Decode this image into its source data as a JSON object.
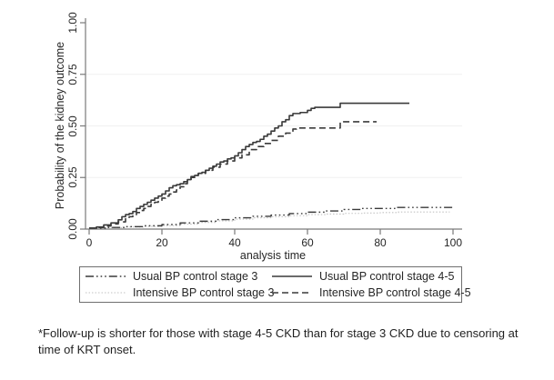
{
  "colors": {
    "background": "#ffffff",
    "axis": "#7a7a7a",
    "gridline": "#f0f0f0",
    "curve_dark": "#3a3a3a",
    "curve_faint": "#c2c2c2",
    "text": "#262626",
    "legend_border": "#6f6f6f"
  },
  "footnote": "*Follow-up is shorter for those with stage 4-5 CKD than for stage 3 CKD due to censoring at time of KRT onset.",
  "chart_data": {
    "type": "line",
    "subtype": "kaplan-meier-step",
    "title": "",
    "xlabel": "analysis time",
    "ylabel": "Probability of the kidney outcome",
    "xlim": [
      0,
      100
    ],
    "ylim": [
      0,
      1
    ],
    "xticks": [
      0,
      20,
      40,
      60,
      80,
      100
    ],
    "yticks": [
      0,
      0.25,
      0.5,
      0.75,
      1.0
    ],
    "xtick_labels": [
      "0",
      "20",
      "40",
      "60",
      "80",
      "100"
    ],
    "ytick_labels": [
      "0.00",
      "0.25",
      "0.50",
      "0.75",
      "1.00"
    ],
    "grid_y": [
      0.25,
      0.5,
      0.75
    ],
    "grid": "horizontal-only",
    "legend_position": "bottom",
    "series": [
      {
        "name": "Usual BP control stage 3",
        "style": "dash_dot",
        "color": "#3a3a3a",
        "x": [
          0,
          5,
          10,
          15,
          20,
          25,
          30,
          35,
          40,
          45,
          50,
          55,
          60,
          65,
          70,
          75,
          80,
          84,
          100
        ],
        "y": [
          0.005,
          0.008,
          0.012,
          0.016,
          0.022,
          0.03,
          0.038,
          0.046,
          0.055,
          0.062,
          0.068,
          0.075,
          0.082,
          0.088,
          0.095,
          0.1,
          0.1,
          0.105,
          0.105
        ]
      },
      {
        "name": "Intensive BP control stage 3",
        "style": "dotted_faint",
        "color": "#c2c2c2",
        "x": [
          0,
          5,
          10,
          15,
          20,
          25,
          30,
          35,
          40,
          45,
          50,
          55,
          60,
          65,
          70,
          75,
          80,
          85,
          99
        ],
        "y": [
          0.005,
          0.007,
          0.01,
          0.013,
          0.017,
          0.024,
          0.032,
          0.04,
          0.048,
          0.055,
          0.06,
          0.065,
          0.07,
          0.073,
          0.076,
          0.078,
          0.08,
          0.083,
          0.085
        ]
      },
      {
        "name": "Usual BP control stage 4-5",
        "style": "solid",
        "color": "#3a3a3a",
        "x": [
          0,
          2,
          4,
          6,
          8,
          9,
          10,
          11,
          12,
          13,
          14,
          15,
          16,
          17,
          18,
          19,
          20,
          21,
          22,
          23,
          24,
          25,
          26,
          27,
          28,
          29,
          30,
          31,
          32,
          33,
          34,
          35,
          36,
          37,
          38,
          39,
          40,
          41,
          42,
          43,
          44,
          45,
          46,
          47,
          48,
          49,
          50,
          51,
          52,
          53,
          54,
          55,
          56,
          58,
          60,
          61,
          62,
          68,
          69,
          88
        ],
        "y": [
          0.005,
          0.01,
          0.02,
          0.03,
          0.045,
          0.06,
          0.07,
          0.075,
          0.085,
          0.1,
          0.11,
          0.12,
          0.13,
          0.14,
          0.15,
          0.16,
          0.17,
          0.185,
          0.2,
          0.21,
          0.215,
          0.22,
          0.23,
          0.24,
          0.255,
          0.26,
          0.27,
          0.275,
          0.285,
          0.295,
          0.305,
          0.315,
          0.325,
          0.33,
          0.34,
          0.345,
          0.355,
          0.37,
          0.385,
          0.4,
          0.41,
          0.42,
          0.425,
          0.435,
          0.45,
          0.46,
          0.475,
          0.49,
          0.5,
          0.52,
          0.53,
          0.55,
          0.56,
          0.565,
          0.575,
          0.585,
          0.59,
          0.59,
          0.61,
          0.61
        ]
      },
      {
        "name": "Intensive BP control stage 4-5",
        "style": "dashed",
        "color": "#3a3a3a",
        "x": [
          0,
          2,
          4,
          6,
          8,
          10,
          11,
          12,
          13,
          14,
          15,
          16,
          17,
          18,
          19,
          20,
          21,
          22,
          23,
          24,
          25,
          26,
          27,
          28,
          29,
          30,
          32,
          34,
          36,
          38,
          40,
          42,
          44,
          46,
          48,
          50,
          52,
          54,
          56,
          57,
          68,
          69,
          79
        ],
        "y": [
          0.005,
          0.008,
          0.015,
          0.025,
          0.035,
          0.05,
          0.06,
          0.07,
          0.08,
          0.09,
          0.1,
          0.11,
          0.12,
          0.13,
          0.14,
          0.15,
          0.16,
          0.17,
          0.18,
          0.19,
          0.205,
          0.22,
          0.235,
          0.25,
          0.26,
          0.27,
          0.285,
          0.3,
          0.315,
          0.33,
          0.345,
          0.36,
          0.385,
          0.4,
          0.415,
          0.43,
          0.45,
          0.465,
          0.485,
          0.49,
          0.49,
          0.52,
          0.52
        ]
      }
    ]
  }
}
